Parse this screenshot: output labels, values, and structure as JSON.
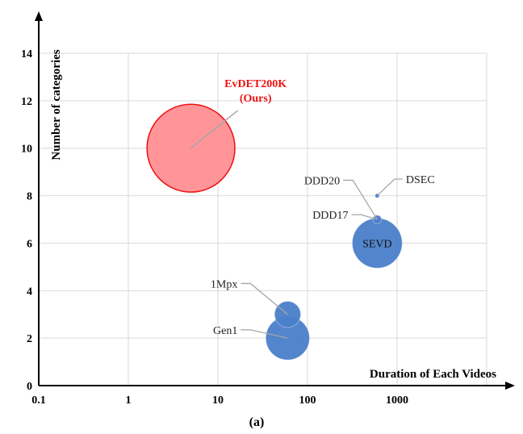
{
  "chart_data": {
    "type": "scatter",
    "subtype": "bubble",
    "caption": "(a)",
    "xlabel": "Duration of Each Videos",
    "ylabel": "Number of categories",
    "xscale": "log",
    "xlim": [
      0.1,
      10000
    ],
    "ylim": [
      0,
      14
    ],
    "grid": true,
    "x_ticks": [
      0.1,
      1,
      10,
      100,
      1000
    ],
    "x_tick_labels": [
      "0.1",
      "1",
      "10",
      "100",
      "1000"
    ],
    "y_ticks": [
      0,
      2,
      4,
      6,
      8,
      10,
      12,
      14
    ],
    "y_tick_labels": [
      "0",
      "2",
      "4",
      "6",
      "8",
      "10",
      "12",
      "14"
    ],
    "series": [
      {
        "name": "EvDET200K",
        "sublabel": "(Ours)",
        "x": 5,
        "y": 10,
        "size_radius": 1.85,
        "color": "#ff8f93",
        "stroke": "#ee1111",
        "label_color": "#ee1111",
        "label_bold": true,
        "label_anchor": [
          16,
          12.2
        ]
      },
      {
        "name": "SEVD",
        "x": 600,
        "y": 6,
        "size_radius": 1.05,
        "color": "#4a7ec9",
        "label_color": "#111111",
        "label_inside": true
      },
      {
        "name": "DDD17",
        "x": 600,
        "y": 7,
        "size_radius": 0.18,
        "color": "#4a7ec9",
        "label_color": "#222222",
        "label_anchor": [
          310,
          7.2
        ]
      },
      {
        "name": "DDD20",
        "x": 600,
        "y": 7,
        "size_radius": 0,
        "color": "#4a7ec9",
        "label_color": "#222222",
        "label_anchor": [
          250,
          8.65
        ]
      },
      {
        "name": "DSEC",
        "x": 600,
        "y": 8,
        "size_radius": 0.09,
        "color": "#4a7ec9",
        "label_color": "#222222",
        "label_anchor": [
          900,
          8.7
        ]
      },
      {
        "name": "1Mpx",
        "x": 60,
        "y": 3,
        "size_radius": 0.55,
        "color": "#4a7ec9",
        "label_color": "#222222",
        "label_anchor": [
          18,
          4.3
        ]
      },
      {
        "name": "Gen1",
        "x": 60,
        "y": 2,
        "size_radius": 0.92,
        "color": "#4a7ec9",
        "label_color": "#222222",
        "label_anchor": [
          18,
          2.35
        ]
      }
    ]
  }
}
